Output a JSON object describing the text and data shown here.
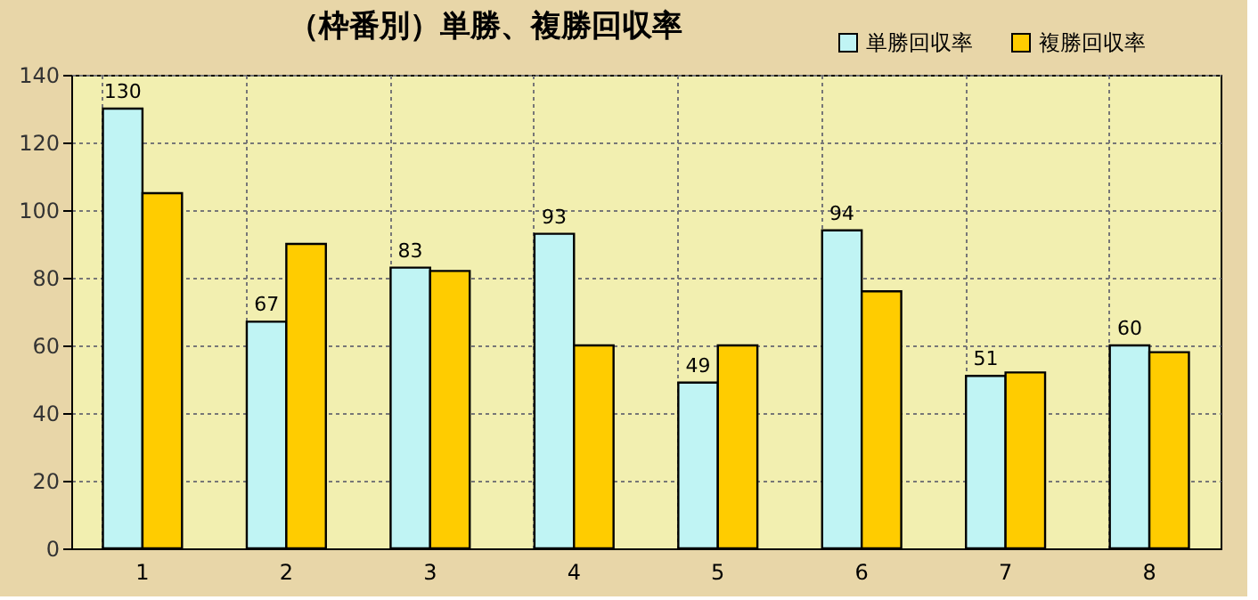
{
  "chart_data": {
    "type": "bar",
    "title": "（枠番別）単勝、複勝回収率",
    "categories": [
      "1",
      "2",
      "3",
      "4",
      "5",
      "6",
      "7",
      "8"
    ],
    "series": [
      {
        "name": "単勝回収率",
        "color": "#c0f4f4",
        "values": [
          130,
          67,
          83,
          93,
          49,
          94,
          51,
          60
        ],
        "value_labels": [
          "130",
          "67",
          "83",
          "93",
          "49",
          "94",
          "51",
          "60"
        ]
      },
      {
        "name": "複勝回収率",
        "color": "#ffcc00",
        "values": [
          105,
          90,
          82,
          60,
          60,
          76,
          52,
          58
        ]
      }
    ],
    "ylim": [
      0,
      140
    ],
    "yticks": [
      0,
      20,
      40,
      60,
      80,
      100,
      120,
      140
    ],
    "grid": true,
    "legend": "top right"
  }
}
